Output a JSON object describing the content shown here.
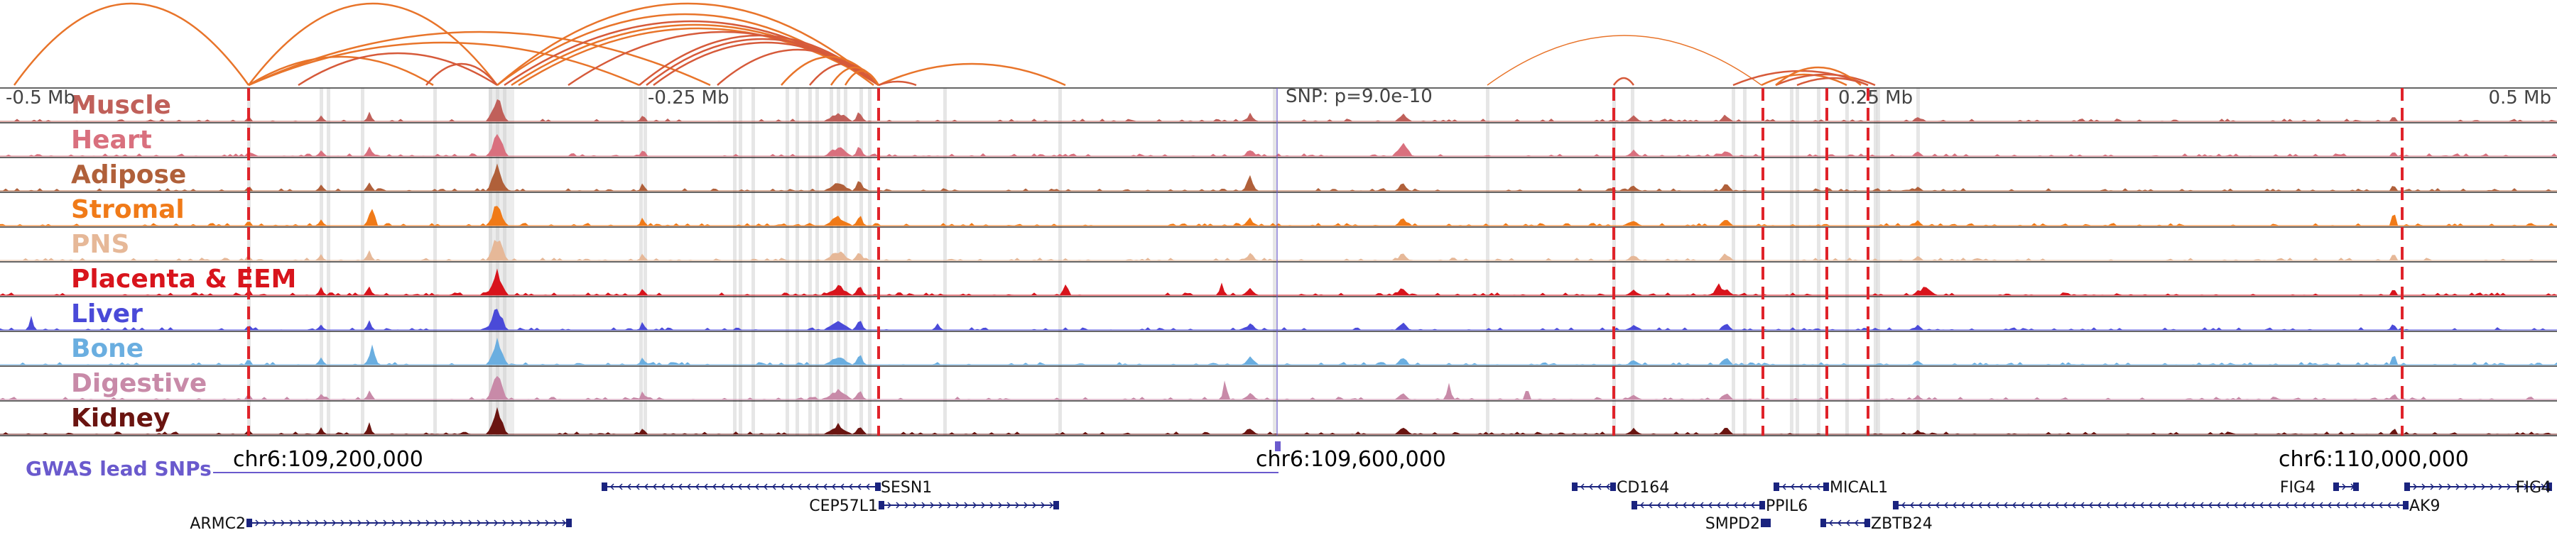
{
  "tracks": [
    {
      "label": "Muscle",
      "color": "#c0605a"
    },
    {
      "label": "Heart",
      "color": "#d9707e"
    },
    {
      "label": "Adipose",
      "color": "#b0603a"
    },
    {
      "label": "Stromal",
      "color": "#f07a18"
    },
    {
      "label": "PNS",
      "color": "#e6b898"
    },
    {
      "label": "Placenta & EEM",
      "color": "#d8141c"
    },
    {
      "label": "Liver",
      "color": "#4a4ad8"
    },
    {
      "label": "Bone",
      "color": "#6aaee0"
    },
    {
      "label": "Digestive",
      "color": "#c88aa8"
    },
    {
      "label": "Kidney",
      "color": "#6a1410"
    }
  ],
  "region": {
    "left_offset": "-0.5 Mb",
    "left_mid_offset": "-0.25 Mb",
    "snp_label": "SNP: p=9.0e-10",
    "right_mid_offset": "0.25 Mb",
    "right_offset": "0.5 Mb"
  },
  "gwas_label": "GWAS lead SNPs",
  "coordinates": [
    "chr6:109,200,000",
    "chr6:109,600,000",
    "chr6:110,000,000"
  ],
  "genes": [
    "SESN1",
    "CEP57L1",
    "ARMC2",
    "CD164",
    "PPIL6",
    "SMPD2",
    "MICAL1",
    "ZBTB24",
    "FIG4",
    "AK9"
  ],
  "colors": {
    "arc": "#e8742a",
    "arc_dark": "#d65a3a",
    "link_line": "#e0232a",
    "highlight": "#c8c8c8",
    "gwas": "#6a5acd",
    "gene": "#1a237e"
  }
}
